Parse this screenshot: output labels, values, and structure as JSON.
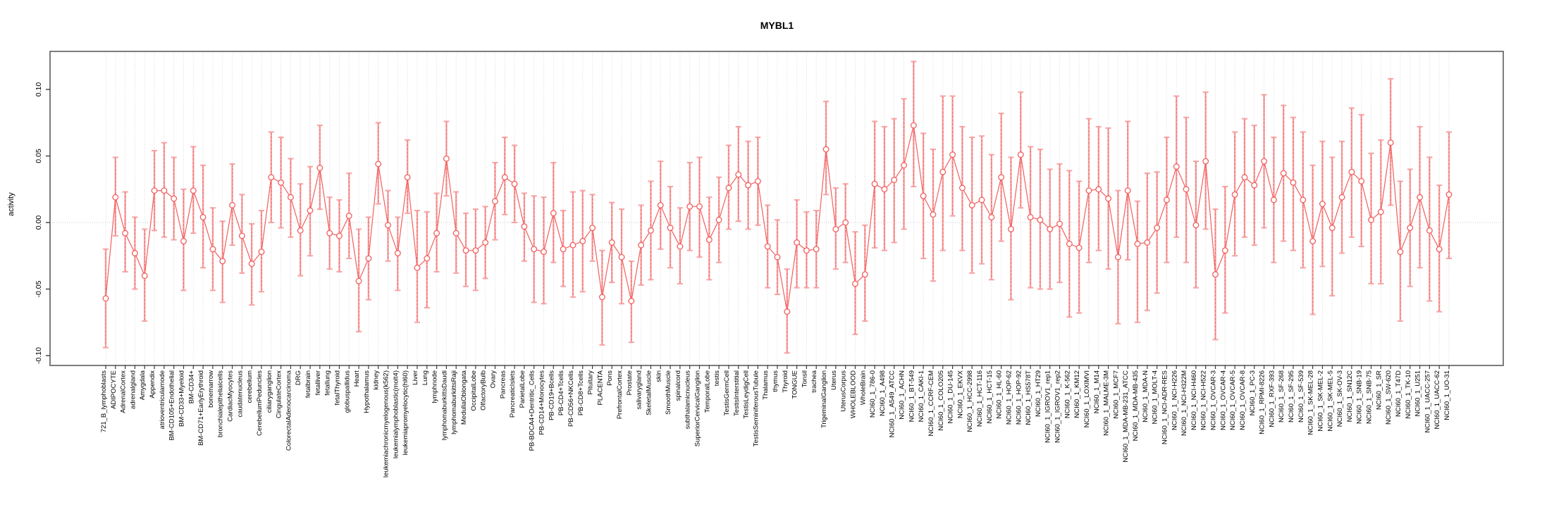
{
  "colors": {
    "point_line": "#f25f5e",
    "error_bar": "#f7a2a2",
    "error_bar_dash": "#f06a6a",
    "grid": "#dadada",
    "zero_line": "#c9c9c9",
    "box": "#6e6e6e",
    "tick": "#3a3a3a",
    "text": "#000000"
  },
  "chart_data": {
    "type": "line",
    "title": "MYBL1",
    "xlabel": "",
    "ylabel": "activity",
    "ylim": [
      -0.107,
      0.129
    ],
    "yticks": [
      -0.1,
      -0.05,
      0.0,
      0.05,
      0.1
    ],
    "zero_line": true,
    "grid": "vertical-dotted",
    "legend": "none",
    "marker": "open-circle",
    "error_bars": true,
    "categories": [
      "721_B_lymphoblasts",
      "ADIPOCYTE",
      "AdrenalCortex",
      "adrenalgland",
      "Amygdala",
      "Appendix",
      "atrioventricularnode",
      "BM-CD105+Endothelial",
      "BM-CD33+Myeloid",
      "BM-CD34+",
      "BM-CD71+EarlyErythroid",
      "bonemarrow",
      "bronchialepithelialcells",
      "CardiacMyocytes",
      "caudatenucleus",
      "cerebellum",
      "CerebellumPeduncles",
      "ciliaryganglion",
      "CingulateCortex",
      "ColorectalAdenocarcinoma",
      "DRG",
      "fetalbrain",
      "fetalliver",
      "fetallung",
      "fetalThyroid",
      "globuspallidus",
      "Heart",
      "Hypothalamus",
      "kidney",
      "leukemiachronicmyelogenous(k562)",
      "leukemialymphoblastic(molt4)",
      "leukemiapromyelocytic(hl60)",
      "Liver",
      "Lung",
      "lymphnode",
      "lymphomaburkittsDaudi",
      "lymphomaburkittsRaji",
      "MedullaOblongata",
      "OccipitalLobe",
      "OlfactoryBulb",
      "Ovary",
      "Pancreas",
      "PancreaticIslets",
      "ParietalLobe",
      "PB-BDCA4+Dentritic_Cells",
      "PB-CD14+Monocytes",
      "PB-CD19+Bcells",
      "PB-CD4+Tcells",
      "PB-CD56+NKCells",
      "PB-CD8+Tcells",
      "Pituitary",
      "PLACENTA",
      "Pons",
      "PrefrontalCortex",
      "Prostate",
      "salivarygland",
      "SkeletalMuscle",
      "skin",
      "SmoothMuscle",
      "spinalcord",
      "subthalamicnucleus",
      "SuperiorCervicalGanglion",
      "TemporalLobe",
      "testis",
      "TestisGermCell",
      "TestisInterstitial",
      "TestisLeydigCell",
      "TestisSeminiferousTubule",
      "Thalamus",
      "thymus",
      "Thyroid",
      "TONGUE",
      "Tonsil",
      "trachea",
      "TrigeminalGanglion",
      "Uterus",
      "UterusCorpus",
      "WHOLEBLOOD",
      "WholeBrain",
      "NCI60_1_786-0",
      "NCI60_1_A498",
      "NCI60_1_A549_ATCC",
      "NCI60_1_ACHN",
      "NCI60_1_BT-549",
      "NCI60_1_CAKI-1",
      "NCI60_1_CCRF-CEM",
      "NCI60_1_COLO205",
      "NCI60_1_DU-145",
      "NCI60_1_EKVX",
      "NCI60_1_HCC-2998",
      "NCI60_1_HCT-116",
      "NCI60_1_HCT-15",
      "NCI60_1_HL-60",
      "NCI60_1_HOP-62",
      "NCI60_1_HOP-92",
      "NCI60_1_HS578T",
      "NCI60_1_HT29",
      "NCI60_1_IGROV1_rep1",
      "NCI60_1_IGROV1_rep2",
      "NCI60_1_K-562",
      "NCI60_1_KM12",
      "NCI60_1_LOXIMVI",
      "NCI60_1_M14",
      "NCI60_1_MALME-3M",
      "NCI60_1_MCF7",
      "NCI60_1_MDA-MB-231_ATCC",
      "NCI60_1_MDA-MB-435",
      "NCI60_1_MDA-N",
      "NCI60_1_MOLT-4",
      "NCI60_1_NCI-ADR-RES",
      "NCI60_1_NCI-H226",
      "NCI60_1_NCI-H322M",
      "NCI60_1_NCI-H460",
      "NCI60_1_NCI-H522",
      "NCI60_1_OVCAR-3",
      "NCI60_1_OVCAR-4",
      "NCI60_1_OVCAR-5",
      "NCI60_1_OVCAR-8",
      "NCI60_1_PC-3",
      "NCI60_1_RPMI-8226",
      "NCI60_1_RXF-393",
      "NCI60_1_SF-268",
      "NCI60_1_SF-295",
      "NCI60_1_SF-539",
      "NCI60_1_SK-MEL-28",
      "NCI60_1_SK-MEL-2",
      "NCI60_1_SK-MEL-5",
      "NCI60_1_SK-OV-3",
      "NCI60_1_SN12C",
      "NCI60_1_SNB-19",
      "NCI60_1_SNB-75",
      "NCI60_1_SR",
      "NCI60_1_SW-620",
      "NCI60_1_T47D",
      "NCI60_1_TK-10",
      "NCI60_1_U251",
      "NCI60_1_UACC-257",
      "NCI60_1_UACC-62",
      "NCI60_1_UO-31"
    ],
    "series": [
      {
        "name": "activity",
        "values": [
          -0.057,
          0.019,
          -0.008,
          -0.023,
          -0.04,
          0.024,
          0.024,
          0.018,
          -0.014,
          0.024,
          0.004,
          -0.02,
          -0.029,
          0.013,
          -0.01,
          -0.031,
          -0.022,
          0.034,
          0.03,
          0.019,
          -0.006,
          0.009,
          0.041,
          -0.008,
          -0.01,
          0.005,
          -0.044,
          -0.027,
          0.044,
          -0.002,
          -0.023,
          0.034,
          -0.034,
          -0.027,
          -0.008,
          0.048,
          -0.008,
          -0.021,
          -0.021,
          -0.015,
          0.016,
          0.034,
          0.029,
          -0.003,
          -0.02,
          -0.022,
          0.007,
          -0.02,
          -0.017,
          -0.014,
          -0.004,
          -0.056,
          -0.015,
          -0.026,
          -0.059,
          -0.017,
          -0.006,
          0.013,
          -0.004,
          -0.018,
          0.012,
          0.012,
          -0.013,
          0.002,
          0.026,
          0.036,
          0.028,
          0.031,
          -0.018,
          -0.026,
          -0.067,
          -0.015,
          -0.021,
          -0.02,
          0.055,
          -0.005,
          0.0,
          -0.046,
          -0.039,
          0.029,
          0.025,
          0.032,
          0.043,
          0.073,
          0.02,
          0.006,
          0.038,
          0.051,
          0.026,
          0.013,
          0.017,
          0.004,
          0.034,
          -0.005,
          0.051,
          0.004,
          0.002,
          -0.005,
          -0.001,
          -0.016,
          -0.019,
          0.024,
          0.025,
          0.018,
          -0.026,
          0.024,
          -0.016,
          -0.015,
          -0.004,
          0.017,
          0.042,
          0.025,
          -0.002,
          0.046,
          -0.039,
          -0.021,
          0.021,
          0.034,
          0.028,
          0.046,
          0.017,
          0.037,
          0.03,
          0.017,
          -0.014,
          0.014,
          -0.004,
          0.019,
          0.038,
          0.031,
          0.002,
          0.008,
          0.06,
          -0.022,
          -0.004,
          0.019,
          -0.006,
          -0.02,
          0.021
        ]
      }
    ],
    "error_low": [
      -0.094,
      -0.01,
      -0.037,
      -0.05,
      -0.074,
      -0.006,
      -0.011,
      -0.013,
      -0.051,
      -0.008,
      -0.034,
      -0.051,
      -0.06,
      -0.017,
      -0.038,
      -0.062,
      -0.052,
      0.0,
      -0.004,
      -0.011,
      -0.04,
      -0.025,
      0.01,
      -0.035,
      -0.037,
      -0.027,
      -0.082,
      -0.058,
      0.014,
      -0.029,
      -0.051,
      0.007,
      -0.075,
      -0.064,
      -0.037,
      0.02,
      -0.038,
      -0.048,
      -0.051,
      -0.042,
      -0.013,
      0.006,
      0.0,
      -0.029,
      -0.06,
      -0.061,
      -0.03,
      -0.048,
      -0.056,
      -0.052,
      -0.029,
      -0.092,
      -0.045,
      -0.061,
      -0.09,
      -0.047,
      -0.043,
      -0.02,
      -0.034,
      -0.046,
      -0.021,
      -0.026,
      -0.043,
      -0.03,
      -0.005,
      0.001,
      -0.005,
      -0.002,
      -0.049,
      -0.054,
      -0.098,
      -0.049,
      -0.049,
      -0.049,
      0.021,
      -0.035,
      -0.03,
      -0.084,
      -0.074,
      -0.019,
      -0.021,
      -0.015,
      -0.005,
      0.027,
      -0.027,
      -0.044,
      -0.021,
      0.005,
      -0.021,
      -0.038,
      -0.031,
      -0.043,
      -0.014,
      -0.058,
      0.011,
      -0.049,
      -0.05,
      -0.05,
      -0.045,
      -0.071,
      -0.068,
      -0.03,
      -0.021,
      -0.035,
      -0.076,
      -0.028,
      -0.075,
      -0.066,
      -0.053,
      -0.03,
      -0.011,
      -0.03,
      -0.049,
      -0.005,
      -0.088,
      -0.068,
      -0.025,
      -0.011,
      -0.017,
      -0.004,
      -0.03,
      -0.014,
      -0.021,
      -0.034,
      -0.069,
      -0.033,
      -0.055,
      -0.023,
      -0.011,
      -0.018,
      -0.046,
      -0.046,
      0.013,
      -0.074,
      -0.048,
      -0.034,
      -0.059,
      -0.067,
      -0.027
    ],
    "error_high": [
      -0.02,
      0.049,
      0.023,
      0.004,
      -0.005,
      0.054,
      0.06,
      0.049,
      0.025,
      0.057,
      0.043,
      0.011,
      0.001,
      0.044,
      0.021,
      -0.001,
      0.009,
      0.068,
      0.064,
      0.048,
      0.029,
      0.042,
      0.073,
      0.019,
      0.017,
      0.037,
      -0.005,
      0.004,
      0.075,
      0.024,
      0.004,
      0.062,
      0.009,
      0.008,
      0.022,
      0.076,
      0.023,
      0.007,
      0.01,
      0.012,
      0.045,
      0.064,
      0.058,
      0.022,
      0.02,
      0.019,
      0.045,
      0.009,
      0.023,
      0.024,
      0.021,
      -0.021,
      0.015,
      0.01,
      -0.029,
      0.013,
      0.031,
      0.046,
      0.027,
      0.011,
      0.045,
      0.049,
      0.019,
      0.034,
      0.058,
      0.072,
      0.061,
      0.064,
      0.013,
      0.002,
      -0.035,
      0.017,
      0.008,
      0.009,
      0.091,
      0.026,
      0.029,
      -0.007,
      -0.002,
      0.076,
      0.072,
      0.078,
      0.093,
      0.121,
      0.067,
      0.055,
      0.095,
      0.095,
      0.072,
      0.064,
      0.065,
      0.051,
      0.082,
      0.049,
      0.098,
      0.057,
      0.055,
      0.04,
      0.044,
      0.039,
      0.031,
      0.078,
      0.072,
      0.071,
      0.024,
      0.076,
      0.016,
      0.037,
      0.038,
      0.064,
      0.095,
      0.079,
      0.046,
      0.098,
      0.01,
      0.027,
      0.068,
      0.078,
      0.073,
      0.096,
      0.064,
      0.088,
      0.079,
      0.068,
      0.043,
      0.061,
      0.049,
      0.061,
      0.086,
      0.081,
      0.052,
      0.062,
      0.108,
      0.031,
      0.04,
      0.072,
      0.049,
      0.028,
      0.068
    ]
  }
}
